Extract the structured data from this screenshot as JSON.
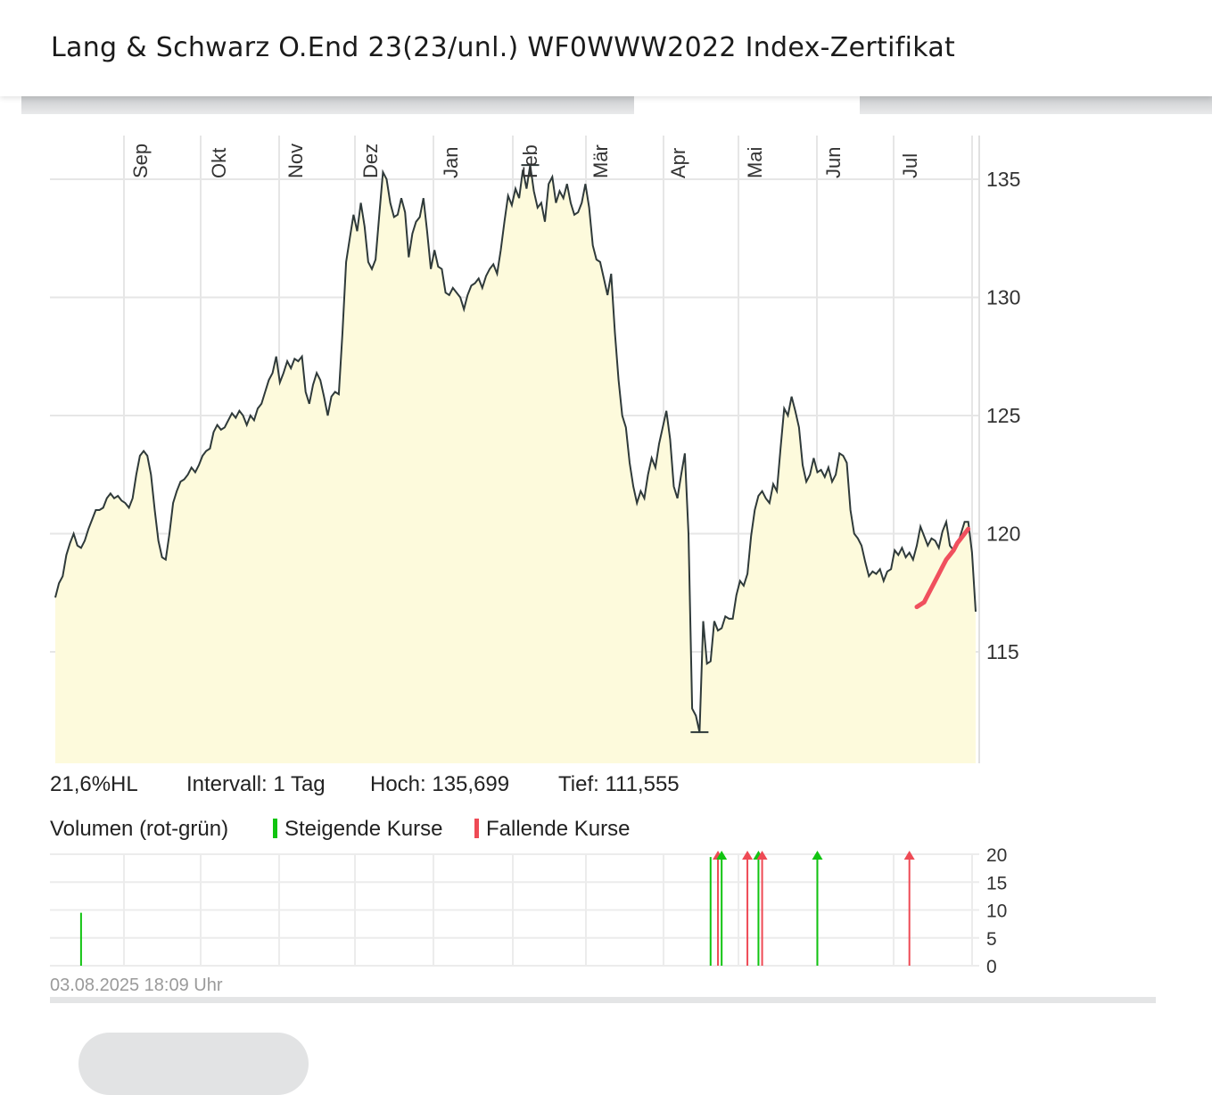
{
  "header": {
    "title": "Lang & Schwarz O.End 23(23/unl.) WF0WWW2022 Index-Zertifikat"
  },
  "stats": {
    "hl": "21,6%HL",
    "interval": "Intervall: 1 Tag",
    "high": "Hoch:  135,699",
    "low": "Tief:  111,555"
  },
  "legend": {
    "volume": "Volumen (rot-grün)",
    "rising": "Steigende Kurse",
    "falling": "Fallende Kurse",
    "rising_color": "#11c411",
    "falling_color": "#ee4a55"
  },
  "timestamp": "03.08.2025 18:09 Uhr",
  "chart_data": [
    {
      "type": "area",
      "months": [
        "Sep",
        "Okt",
        "Nov",
        "Dez",
        "Jan",
        "Feb",
        "Mär",
        "Apr",
        "Mai",
        "Jun",
        "Jul"
      ],
      "y_ticks": [
        "135",
        "130",
        "125",
        "120",
        "115"
      ],
      "ylim": [
        110.3,
        136.8
      ],
      "grid": true,
      "fill_color": "#fdfadc",
      "line_color": "#2f3a3a",
      "ma_color": "#f0505e",
      "series": [
        {
          "values": [
            117.3,
            117.9,
            118.2,
            119.1,
            119.6,
            120.0,
            119.5,
            119.4,
            119.7,
            120.2,
            120.6,
            121.0,
            121.0,
            121.1,
            121.5,
            121.7,
            121.5,
            121.6,
            121.4,
            121.3,
            121.1,
            121.5,
            122.5,
            123.3,
            123.5,
            123.3,
            122.5,
            121.0,
            119.7,
            119.0,
            118.9,
            120.0,
            121.3,
            121.8,
            122.2,
            122.3,
            122.5,
            122.8,
            122.6,
            122.9,
            123.3,
            123.5,
            123.6,
            124.3,
            124.6,
            124.4,
            124.5,
            124.8,
            125.1,
            124.9,
            125.2,
            125.0,
            124.6,
            125.0,
            124.8,
            125.3,
            125.5,
            126.0,
            126.5,
            126.8,
            127.5,
            126.4,
            126.8,
            127.3,
            127.0,
            127.4,
            127.3,
            127.5,
            126.0,
            125.5,
            126.3,
            126.8,
            126.5,
            125.8,
            125.0,
            125.8,
            126.0,
            125.9,
            128.5,
            131.5,
            132.5,
            133.5,
            132.8,
            134.0,
            133.0,
            131.5,
            131.2,
            131.6,
            133.5,
            135.3,
            135.0,
            134.0,
            133.4,
            133.5,
            134.2,
            133.6,
            131.7,
            132.7,
            133.2,
            133.4,
            134.2,
            132.8,
            131.2,
            132.0,
            131.3,
            131.2,
            130.2,
            130.1,
            130.4,
            130.2,
            130.0,
            129.5,
            130.1,
            130.5,
            130.6,
            130.8,
            130.4,
            130.9,
            131.2,
            131.4,
            131.0,
            132.0,
            133.2,
            134.3,
            133.9,
            134.6,
            134.2,
            135.4,
            134.6,
            135.6,
            134.5,
            133.8,
            134.0,
            133.2,
            134.8,
            135.1,
            134.0,
            134.5,
            134.2,
            134.8,
            134.0,
            133.5,
            133.6,
            134.0,
            134.8,
            133.8,
            132.2,
            131.6,
            131.5,
            130.8,
            130.1,
            131.0,
            128.5,
            126.5,
            125.0,
            124.5,
            123.0,
            122.0,
            121.3,
            121.8,
            121.5,
            122.5,
            123.2,
            122.8,
            123.8,
            124.5,
            125.2,
            124.0,
            122.0,
            121.5,
            122.5,
            123.4,
            120.0,
            112.6,
            112.3,
            111.6,
            116.3,
            114.5,
            114.6,
            116.3,
            115.9,
            116.0,
            116.5,
            116.4,
            116.4,
            117.4,
            118.0,
            117.8,
            118.3,
            119.9,
            121.0,
            121.6,
            121.8,
            121.5,
            121.3,
            122.1,
            121.8,
            123.6,
            125.3,
            125.0,
            125.8,
            125.2,
            124.5,
            122.9,
            122.2,
            122.5,
            123.2,
            122.6,
            122.7,
            122.4,
            122.8,
            122.2,
            122.5,
            123.4,
            123.3,
            123.0,
            121.0,
            120.0,
            119.8,
            119.5,
            118.8,
            118.2,
            118.4,
            118.3,
            118.5,
            118.0,
            118.4,
            118.5,
            119.3,
            119.1,
            119.4,
            119.0,
            119.2,
            118.9,
            119.5,
            120.3,
            119.9,
            119.5,
            119.8,
            119.7,
            119.4,
            120.1,
            120.5,
            119.5,
            119.3,
            119.5,
            120.0,
            120.5,
            120.5,
            119.2,
            116.7
          ]
        },
        {
          "name": "",
          "start_index": 234,
          "values": [
            116.9,
            117.0,
            117.1,
            117.4,
            117.7,
            118.0,
            118.3,
            118.6,
            118.9,
            119.1,
            119.3,
            119.6,
            119.8,
            120.0,
            120.2
          ]
        }
      ]
    },
    {
      "type": "bar",
      "y_ticks": [
        "20",
        "15",
        "10",
        "5",
        "0"
      ],
      "ylim": [
        0,
        20
      ],
      "bars": [
        {
          "index": 7,
          "value": 9.5,
          "direction": "rising"
        },
        {
          "index": 178,
          "value": 19.5,
          "direction": "rising"
        },
        {
          "index": 180,
          "value": 20.5,
          "direction": "falling"
        },
        {
          "index": 181,
          "value": 20.5,
          "direction": "rising"
        },
        {
          "index": 188,
          "value": 20.5,
          "direction": "falling"
        },
        {
          "index": 191,
          "value": 20.5,
          "direction": "rising"
        },
        {
          "index": 192,
          "value": 20.5,
          "direction": "falling"
        },
        {
          "index": 207,
          "value": 20.5,
          "direction": "rising"
        },
        {
          "index": 232,
          "value": 20.5,
          "direction": "falling"
        }
      ]
    }
  ]
}
